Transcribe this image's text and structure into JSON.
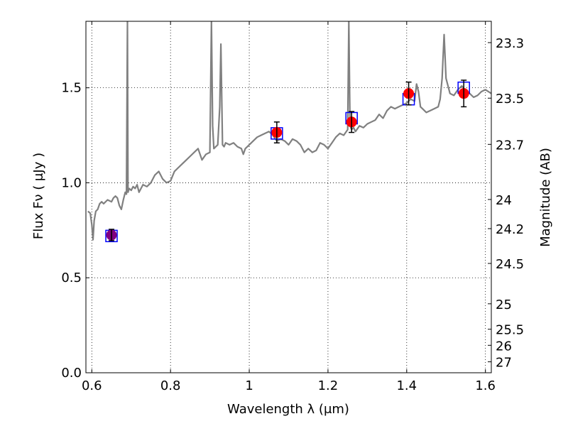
{
  "chart_data": {
    "type": "scatter",
    "xlabel": "Wavelength  λ (μm)",
    "ylabel": "Flux  Fν  ( μJy )",
    "ylabel_right": "Magnitude (AB)",
    "xlim": [
      0.585,
      1.615
    ],
    "ylim": [
      0.0,
      1.85
    ],
    "grid": true,
    "x_ticks": [
      0.6,
      0.8,
      1.0,
      1.2,
      1.4,
      1.6
    ],
    "x_tick_labels": [
      "0.6",
      "0.8",
      "1",
      "1.2",
      "1.4",
      "1.6"
    ],
    "y_ticks": [
      0.0,
      0.5,
      1.0,
      1.5
    ],
    "y_tick_labels": [
      "0.0",
      "0.5",
      "1.0",
      "1.5"
    ],
    "mag_ticks": [
      23.3,
      23.5,
      23.7,
      24,
      24.2,
      24.5,
      25,
      25.5,
      26,
      27
    ],
    "mag_tick_labels": [
      "23.3",
      "23.5",
      "23.7",
      "24",
      "24.2",
      "24.5",
      "25",
      "25.5",
      "26",
      "27"
    ],
    "colors": {
      "spectrum": "#808080",
      "model_box": "#0000ff",
      "observed": "#ff0000",
      "first_point": "#800080",
      "errorbar": "#000000"
    },
    "series": [
      {
        "kind": "line",
        "x": [
          0.59,
          0.596,
          0.6,
          0.603,
          0.606,
          0.61,
          0.615,
          0.62,
          0.625,
          0.63,
          0.64,
          0.65,
          0.655,
          0.66,
          0.665,
          0.67,
          0.675,
          0.68,
          0.685,
          0.688,
          0.6905,
          0.692,
          0.695,
          0.7,
          0.705,
          0.71,
          0.715,
          0.72,
          0.73,
          0.74,
          0.75,
          0.76,
          0.77,
          0.78,
          0.79,
          0.8,
          0.81,
          0.82,
          0.83,
          0.84,
          0.85,
          0.86,
          0.87,
          0.88,
          0.89,
          0.9,
          0.904,
          0.907,
          0.91,
          0.915,
          0.92,
          0.925,
          0.928,
          0.932,
          0.936,
          0.94,
          0.95,
          0.96,
          0.97,
          0.98,
          0.985,
          0.99,
          1.0,
          1.01,
          1.02,
          1.03,
          1.04,
          1.05,
          1.06,
          1.07,
          1.08,
          1.09,
          1.1,
          1.11,
          1.12,
          1.13,
          1.14,
          1.15,
          1.16,
          1.17,
          1.18,
          1.19,
          1.2,
          1.21,
          1.22,
          1.23,
          1.24,
          1.25,
          1.253,
          1.256,
          1.26,
          1.265,
          1.27,
          1.28,
          1.29,
          1.3,
          1.31,
          1.32,
          1.33,
          1.34,
          1.35,
          1.36,
          1.37,
          1.38,
          1.39,
          1.4,
          1.41,
          1.42,
          1.425,
          1.43,
          1.435,
          1.44,
          1.45,
          1.46,
          1.47,
          1.48,
          1.485,
          1.49,
          1.495,
          1.5,
          1.51,
          1.52,
          1.53,
          1.54,
          1.55,
          1.56,
          1.57,
          1.58,
          1.59,
          1.6,
          1.615
        ],
        "y": [
          0.85,
          0.84,
          0.78,
          0.7,
          0.8,
          0.85,
          0.86,
          0.89,
          0.9,
          0.89,
          0.91,
          0.9,
          0.92,
          0.93,
          0.92,
          0.88,
          0.86,
          0.91,
          0.95,
          0.94,
          1.85,
          0.95,
          0.97,
          0.96,
          0.98,
          0.97,
          0.99,
          0.95,
          0.99,
          0.98,
          1.0,
          1.04,
          1.06,
          1.02,
          1.0,
          1.01,
          1.06,
          1.08,
          1.1,
          1.12,
          1.14,
          1.16,
          1.18,
          1.12,
          1.15,
          1.16,
          1.85,
          1.3,
          1.18,
          1.19,
          1.2,
          1.4,
          1.73,
          1.2,
          1.19,
          1.21,
          1.2,
          1.21,
          1.19,
          1.18,
          1.15,
          1.18,
          1.2,
          1.22,
          1.24,
          1.25,
          1.26,
          1.27,
          1.25,
          1.22,
          1.23,
          1.22,
          1.2,
          1.23,
          1.22,
          1.2,
          1.16,
          1.18,
          1.16,
          1.17,
          1.21,
          1.2,
          1.18,
          1.21,
          1.24,
          1.26,
          1.25,
          1.28,
          1.85,
          1.3,
          1.28,
          1.29,
          1.27,
          1.3,
          1.29,
          1.31,
          1.32,
          1.33,
          1.36,
          1.34,
          1.38,
          1.4,
          1.39,
          1.4,
          1.41,
          1.42,
          1.44,
          1.43,
          1.52,
          1.48,
          1.4,
          1.39,
          1.37,
          1.38,
          1.39,
          1.4,
          1.44,
          1.55,
          1.78,
          1.55,
          1.47,
          1.46,
          1.49,
          1.51,
          1.48,
          1.47,
          1.45,
          1.46,
          1.48,
          1.49,
          1.47
        ]
      },
      {
        "kind": "boxes",
        "x": [
          0.65,
          1.07,
          1.26,
          1.405,
          1.545
        ],
        "y": [
          0.72,
          1.26,
          1.34,
          1.44,
          1.5
        ]
      },
      {
        "kind": "points",
        "x": [
          0.65,
          1.07,
          1.26,
          1.405,
          1.545
        ],
        "y": [
          0.725,
          1.265,
          1.32,
          1.47,
          1.47
        ],
        "yerr": [
          0.03,
          0.055,
          0.055,
          0.06,
          0.07
        ]
      }
    ]
  }
}
